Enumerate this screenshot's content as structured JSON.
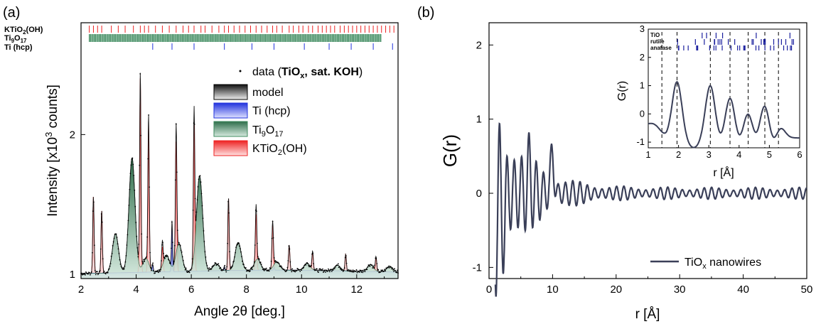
{
  "panels": {
    "a_label": "(a)",
    "b_label": "(b)"
  },
  "chart_data": [
    {
      "panel": "(a)",
      "type": "line",
      "xlabel": "Angle 2θ [deg.]",
      "ylabel": "Intensity [x10³ counts]",
      "ylabel_parts": {
        "main": "Intensity [x10",
        "sup": "3",
        "tail": " counts]"
      },
      "xlim": [
        2,
        13.5
      ],
      "ylim": [
        0.97,
        2.8
      ],
      "xticks": [
        "2",
        "4",
        "6",
        "8",
        "10",
        "12"
      ],
      "xtick_values": [
        2,
        4,
        6,
        8,
        10,
        12
      ],
      "yticks": [
        "1",
        "2"
      ],
      "ytick_values": [
        1,
        2
      ],
      "phase_labels": [
        {
          "text": "KTiO",
          "sub1": "2",
          "tail": "(OH)",
          "color": "#ee2222"
        },
        {
          "text": "Ti",
          "sub1": "9",
          "mid": "O",
          "sub2": "17",
          "color": "#3d8a5e"
        },
        {
          "text": "Ti (hcp)",
          "color": "#2233dd"
        }
      ],
      "legend": {
        "data": {
          "pre": "data (",
          "bold": "TiO",
          "bold_sub": "x",
          "bold_tail": ", sat. KOH",
          "post": ")"
        },
        "items": [
          {
            "label": "model",
            "color": "#222222"
          },
          {
            "label": "Ti (hcp)",
            "color": "#2233dd"
          },
          {
            "label": "Ti",
            "sub1": "9",
            "mid": "O",
            "sub2": "17",
            "color": "#3d8a5e"
          },
          {
            "label": "KTiO",
            "sub1": "2",
            "tail": "(OH)",
            "color": "#ee2222"
          }
        ]
      },
      "peaks_ti9o17": [
        [
          3.25,
          1.28
        ],
        [
          3.85,
          1.82
        ],
        [
          4.35,
          1.1
        ],
        [
          5.1,
          1.12
        ],
        [
          5.55,
          1.2
        ],
        [
          6.3,
          1.68
        ],
        [
          6.9,
          1.05
        ],
        [
          7.7,
          1.2
        ],
        [
          8.4,
          1.08
        ],
        [
          9.1,
          1.06
        ],
        [
          10.2,
          1.05
        ],
        [
          11.3,
          1.04
        ],
        [
          12.5,
          1.05
        ],
        [
          13.2,
          1.04
        ]
      ],
      "peaks_ktio2": [
        [
          2.45,
          1.55
        ],
        [
          2.75,
          1.45
        ],
        [
          4.15,
          2.4
        ],
        [
          4.45,
          2.07
        ],
        [
          4.95,
          1.18
        ],
        [
          5.45,
          1.93
        ],
        [
          6.1,
          2.05
        ],
        [
          7.35,
          1.52
        ],
        [
          8.35,
          1.4
        ],
        [
          8.95,
          1.33
        ],
        [
          9.55,
          1.18
        ],
        [
          10.4,
          1.13
        ],
        [
          11.6,
          1.12
        ],
        [
          12.7,
          1.1
        ]
      ],
      "peaks_ti": [
        [
          5.3,
          1.33
        ],
        [
          4.6,
          1.05
        ],
        [
          7.2,
          1.03
        ],
        [
          9.0,
          1.02
        ]
      ],
      "ticks_ktio2": [
        2.3,
        2.45,
        2.6,
        2.75,
        3.1,
        3.35,
        3.6,
        3.9,
        4.15,
        4.3,
        4.45,
        4.7,
        4.95,
        5.2,
        5.45,
        5.7,
        5.9,
        6.1,
        6.35,
        6.5,
        6.75,
        7.0,
        7.2,
        7.35,
        7.55,
        7.75,
        7.95,
        8.15,
        8.35,
        8.55,
        8.75,
        8.95,
        9.1,
        9.3,
        9.55,
        9.7,
        9.9,
        10.05,
        10.25,
        10.4,
        10.6,
        10.75,
        10.9,
        11.05,
        11.2,
        11.4,
        11.55,
        11.7,
        11.85,
        12.0,
        12.15,
        12.3,
        12.45,
        12.6,
        12.75,
        12.9,
        13.05,
        13.2,
        13.35
      ],
      "ticks_ti": [
        4.6,
        5.3,
        6.1,
        7.2,
        8.2,
        9.0,
        10.1,
        11.0,
        11.8,
        12.6,
        13.3
      ]
    },
    {
      "panel": "(b)",
      "type": "line",
      "xlabel": "r [Å]",
      "ylabel": "G(r)",
      "xlim": [
        0,
        50
      ],
      "ylim": [
        -1.15,
        2.3
      ],
      "xticks": [
        "0",
        "10",
        "20",
        "30",
        "40",
        "50"
      ],
      "xtick_values": [
        0,
        10,
        20,
        30,
        40,
        50
      ],
      "yticks": [
        "-1",
        "0",
        "1",
        "2"
      ],
      "ytick_values": [
        -1,
        0,
        1,
        2
      ],
      "series": [
        {
          "name": "TiOx nanowires",
          "color": "#3a3f58"
        }
      ],
      "legend": {
        "pre": "TiO",
        "sub": "x",
        "post": " nanowires"
      },
      "inset": {
        "xlabel": "r [Å]",
        "ylabel": "G(r)",
        "xlim": [
          1,
          6
        ],
        "ylim": [
          -1.2,
          3.0
        ],
        "xticks": [
          "1",
          "2",
          "3",
          "4",
          "5",
          "6"
        ],
        "xtick_values": [
          1,
          2,
          3,
          4,
          5,
          6
        ],
        "yticks": [
          "-1",
          "0",
          "1",
          "2",
          "3"
        ],
        "ytick_values": [
          -1,
          0,
          1,
          2,
          3
        ],
        "phase_labels": [
          "TiO",
          "rutile",
          "anatase"
        ],
        "dashed_lines": [
          1.45,
          1.95,
          3.05,
          3.7,
          4.3,
          4.85,
          5.3
        ],
        "peaks": [
          [
            1.95,
            1.4
          ],
          [
            3.05,
            1.3
          ],
          [
            3.7,
            0.9
          ],
          [
            4.3,
            0.35
          ],
          [
            4.85,
            0.65
          ],
          [
            5.35,
            -0.2
          ]
        ]
      }
    }
  ]
}
